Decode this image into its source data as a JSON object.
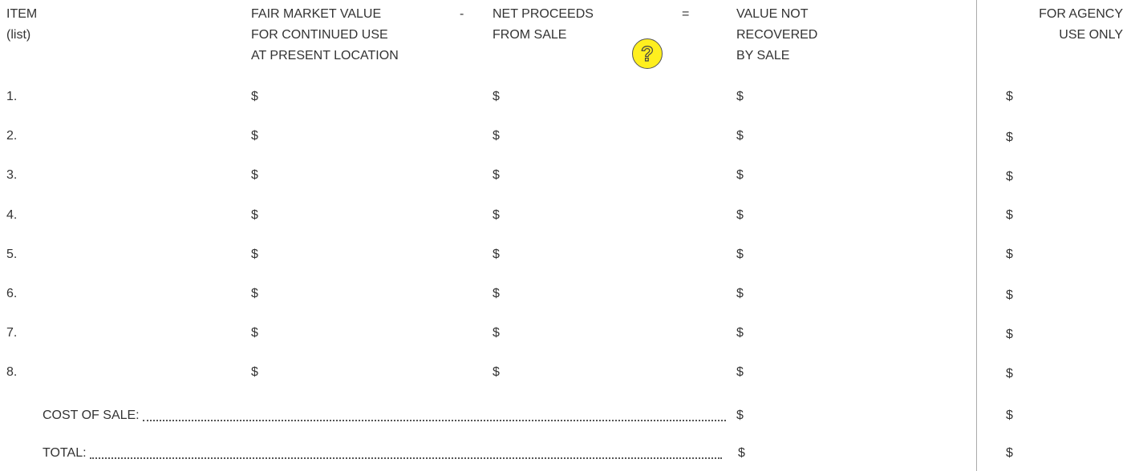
{
  "header": {
    "item": [
      "ITEM",
      "(list)"
    ],
    "fair_market_value": [
      "FAIR MARKET VALUE",
      "FOR CONTINUED USE",
      "AT PRESENT LOCATION"
    ],
    "minus": "-",
    "net_proceeds": [
      "NET PROCEEDS",
      "FROM SALE"
    ],
    "equals": "=",
    "value_not_recovered": [
      "VALUE NOT",
      "RECOVERED",
      "BY SALE"
    ],
    "agency": [
      "FOR AGENCY",
      "USE ONLY"
    ]
  },
  "help_icon": "?",
  "rows": [
    {
      "label": "1.",
      "cells": [
        "$",
        "$",
        "$",
        "$"
      ]
    },
    {
      "label": "2.",
      "cells": [
        "$",
        "$",
        "$",
        "$"
      ]
    },
    {
      "label": "3.",
      "cells": [
        "$",
        "$",
        "$",
        "$"
      ]
    },
    {
      "label": "4.",
      "cells": [
        "$",
        "$",
        "$",
        "$"
      ]
    },
    {
      "label": "5.",
      "cells": [
        "$",
        "$",
        "$",
        "$"
      ]
    },
    {
      "label": "6.",
      "cells": [
        "$",
        "$",
        "$",
        "$"
      ]
    },
    {
      "label": "7.",
      "cells": [
        "$",
        "$",
        "$",
        "$"
      ]
    },
    {
      "label": "8.",
      "cells": [
        "$",
        "$",
        "$",
        "$"
      ]
    }
  ],
  "cost_of_sale": {
    "label": "COST OF SALE:",
    "cells": [
      "$",
      "$"
    ]
  },
  "total": {
    "label": "TOTAL:",
    "cells": [
      "$",
      "$"
    ]
  }
}
